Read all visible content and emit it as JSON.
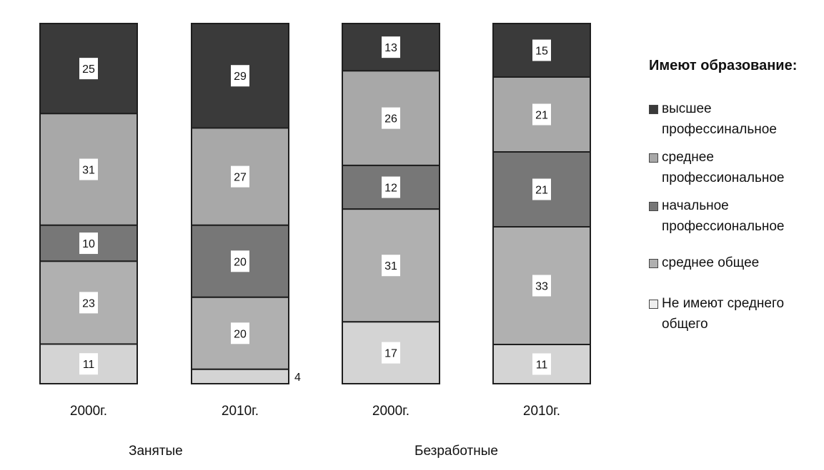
{
  "chart_data": {
    "type": "bar",
    "stacked": true,
    "normalized": true,
    "categories": [
      "2000г.",
      "2010г.",
      "2000г.",
      "2010г."
    ],
    "groups": [
      {
        "label": "Занятые",
        "categories": [
          "2000г.",
          "2010г."
        ]
      },
      {
        "label": "Безработные",
        "categories": [
          "2000г.",
          "2010г."
        ]
      }
    ],
    "legend_title": "Имеют образование:",
    "legend_position": "right",
    "series": [
      {
        "name": "высшее профессинальное",
        "values": [
          25,
          29,
          13,
          15
        ],
        "color": "#3a3a3a"
      },
      {
        "name": "среднее профессиональное",
        "values": [
          31,
          27,
          26,
          21
        ],
        "color": "#a8a8a8"
      },
      {
        "name": "начальное профессиональное",
        "values": [
          10,
          20,
          12,
          21
        ],
        "color": "#777777"
      },
      {
        "name": "среднее общее",
        "values": [
          23,
          20,
          31,
          33
        ],
        "color": "#b0b0b0"
      },
      {
        "name": "Не имеют среднего общего",
        "values": [
          11,
          4,
          17,
          11
        ],
        "color": "#d4d4d4"
      }
    ],
    "grid": false
  }
}
